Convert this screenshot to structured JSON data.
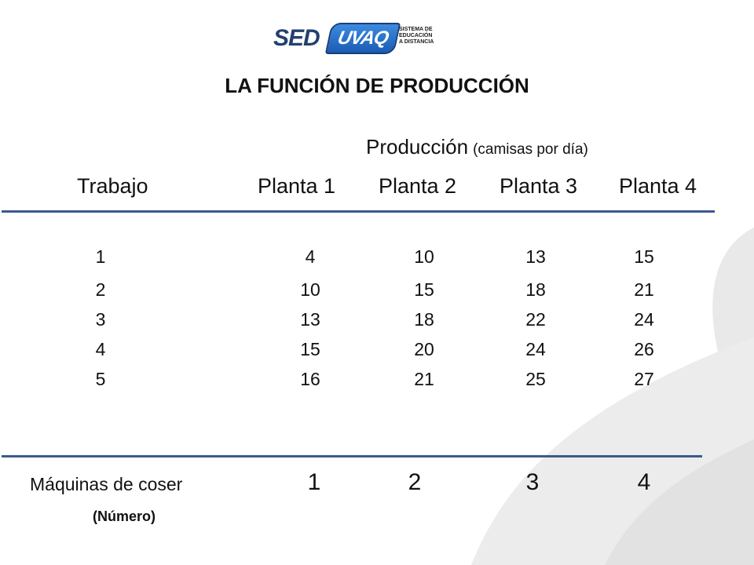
{
  "logo": {
    "sed": "SED",
    "uvaq": "UVAQ",
    "tagline": [
      "SISTEMA DE",
      "EDUCACIÓN",
      "A DISTANCIA"
    ]
  },
  "title": "LA FUNCIÓN DE PRODUCCIÓN",
  "production_heading": "Producción",
  "production_unit": "(camisas por día)",
  "table": {
    "labor_header": "Trabajo",
    "plant_headers": [
      "Planta 1",
      "Planta 2",
      "Planta 3",
      "Planta 4"
    ],
    "rows": [
      {
        "labor": "1",
        "values": [
          "4",
          "10",
          "13",
          "15"
        ]
      },
      {
        "labor": "2",
        "values": [
          "10",
          "15",
          "18",
          "21"
        ]
      },
      {
        "labor": "3",
        "values": [
          "13",
          "18",
          "22",
          "24"
        ]
      },
      {
        "labor": "4",
        "values": [
          "15",
          "20",
          "24",
          "26"
        ]
      },
      {
        "labor": "5",
        "values": [
          "16",
          "21",
          "25",
          "27"
        ]
      }
    ]
  },
  "machines": {
    "label": "Máquinas de coser",
    "unit": "(Número)",
    "values": [
      "1",
      "2",
      "3",
      "4"
    ]
  },
  "colors": {
    "rule": "#3a5a8c",
    "swoosh": "#e6e6e6",
    "logo_blue": "#22406e"
  }
}
